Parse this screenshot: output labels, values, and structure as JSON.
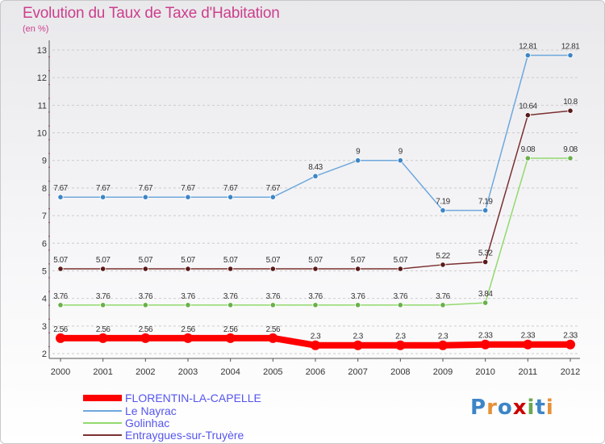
{
  "title": "Evolution du Taux de Taxe d'Habitation",
  "unit": "(en %)",
  "logo": "Proxiti",
  "colors": {
    "title": "#cc3f8c",
    "grid": "#cccccc",
    "axis_marks": "#cc3f8c"
  },
  "chart_data": {
    "type": "line",
    "x": [
      "2000",
      "2001",
      "2002",
      "2003",
      "2004",
      "2005",
      "2006",
      "2007",
      "2008",
      "2009",
      "2010",
      "2011",
      "2012"
    ],
    "ylim": [
      2,
      13
    ],
    "yticks": [
      2,
      3,
      4,
      5,
      6,
      7,
      8,
      9,
      10,
      11,
      12,
      13
    ],
    "grid": "horizontal dashed",
    "legend": "bottom-left",
    "series": [
      {
        "name": "FLORENTIN-LA-CAPELLE",
        "color": "#ff0000",
        "values": [
          2.56,
          2.56,
          2.56,
          2.56,
          2.56,
          2.56,
          2.3,
          2.3,
          2.3,
          2.3,
          2.33,
          2.33,
          2.33
        ],
        "labels": [
          "2.56",
          "2.56",
          "2.56",
          "2.56",
          "2.56",
          "2.56",
          "2.3",
          "2.3",
          "2.3",
          "2.3",
          "2.33",
          "2.33",
          "2.33"
        ]
      },
      {
        "name": "Le Nayrac",
        "color": "#6fa8dc",
        "marker": "#3d85c6",
        "values": [
          7.67,
          7.67,
          7.67,
          7.67,
          7.67,
          7.67,
          8.43,
          9,
          9,
          7.19,
          7.19,
          12.81,
          12.81
        ],
        "labels": [
          "7.67",
          "7.67",
          "7.67",
          "7.67",
          "7.67",
          "7.67",
          "8.43",
          "9",
          "9",
          "7.19",
          "7.19",
          "12.81",
          "12.81"
        ]
      },
      {
        "name": "Golinhac",
        "color": "#93d96e",
        "marker": "#6ab04c",
        "values": [
          3.76,
          3.76,
          3.76,
          3.76,
          3.76,
          3.76,
          3.76,
          3.76,
          3.76,
          3.76,
          3.84,
          9.08,
          9.08
        ],
        "labels": [
          "3.76",
          "3.76",
          "3.76",
          "3.76",
          "3.76",
          "3.76",
          "3.76",
          "3.76",
          "3.76",
          "3.76",
          "3.84",
          "9.08",
          "9.08"
        ]
      },
      {
        "name": "Entraygues-sur-Truyère",
        "color": "#7a3030",
        "marker": "#5a1a1a",
        "values": [
          5.07,
          5.07,
          5.07,
          5.07,
          5.07,
          5.07,
          5.07,
          5.07,
          5.07,
          5.22,
          5.32,
          10.64,
          10.8
        ],
        "labels": [
          "5.07",
          "5.07",
          "5.07",
          "5.07",
          "5.07",
          "5.07",
          "5.07",
          "5.07",
          "5.07",
          "5.22",
          "5.32",
          "10.64",
          "10.8"
        ]
      }
    ]
  }
}
